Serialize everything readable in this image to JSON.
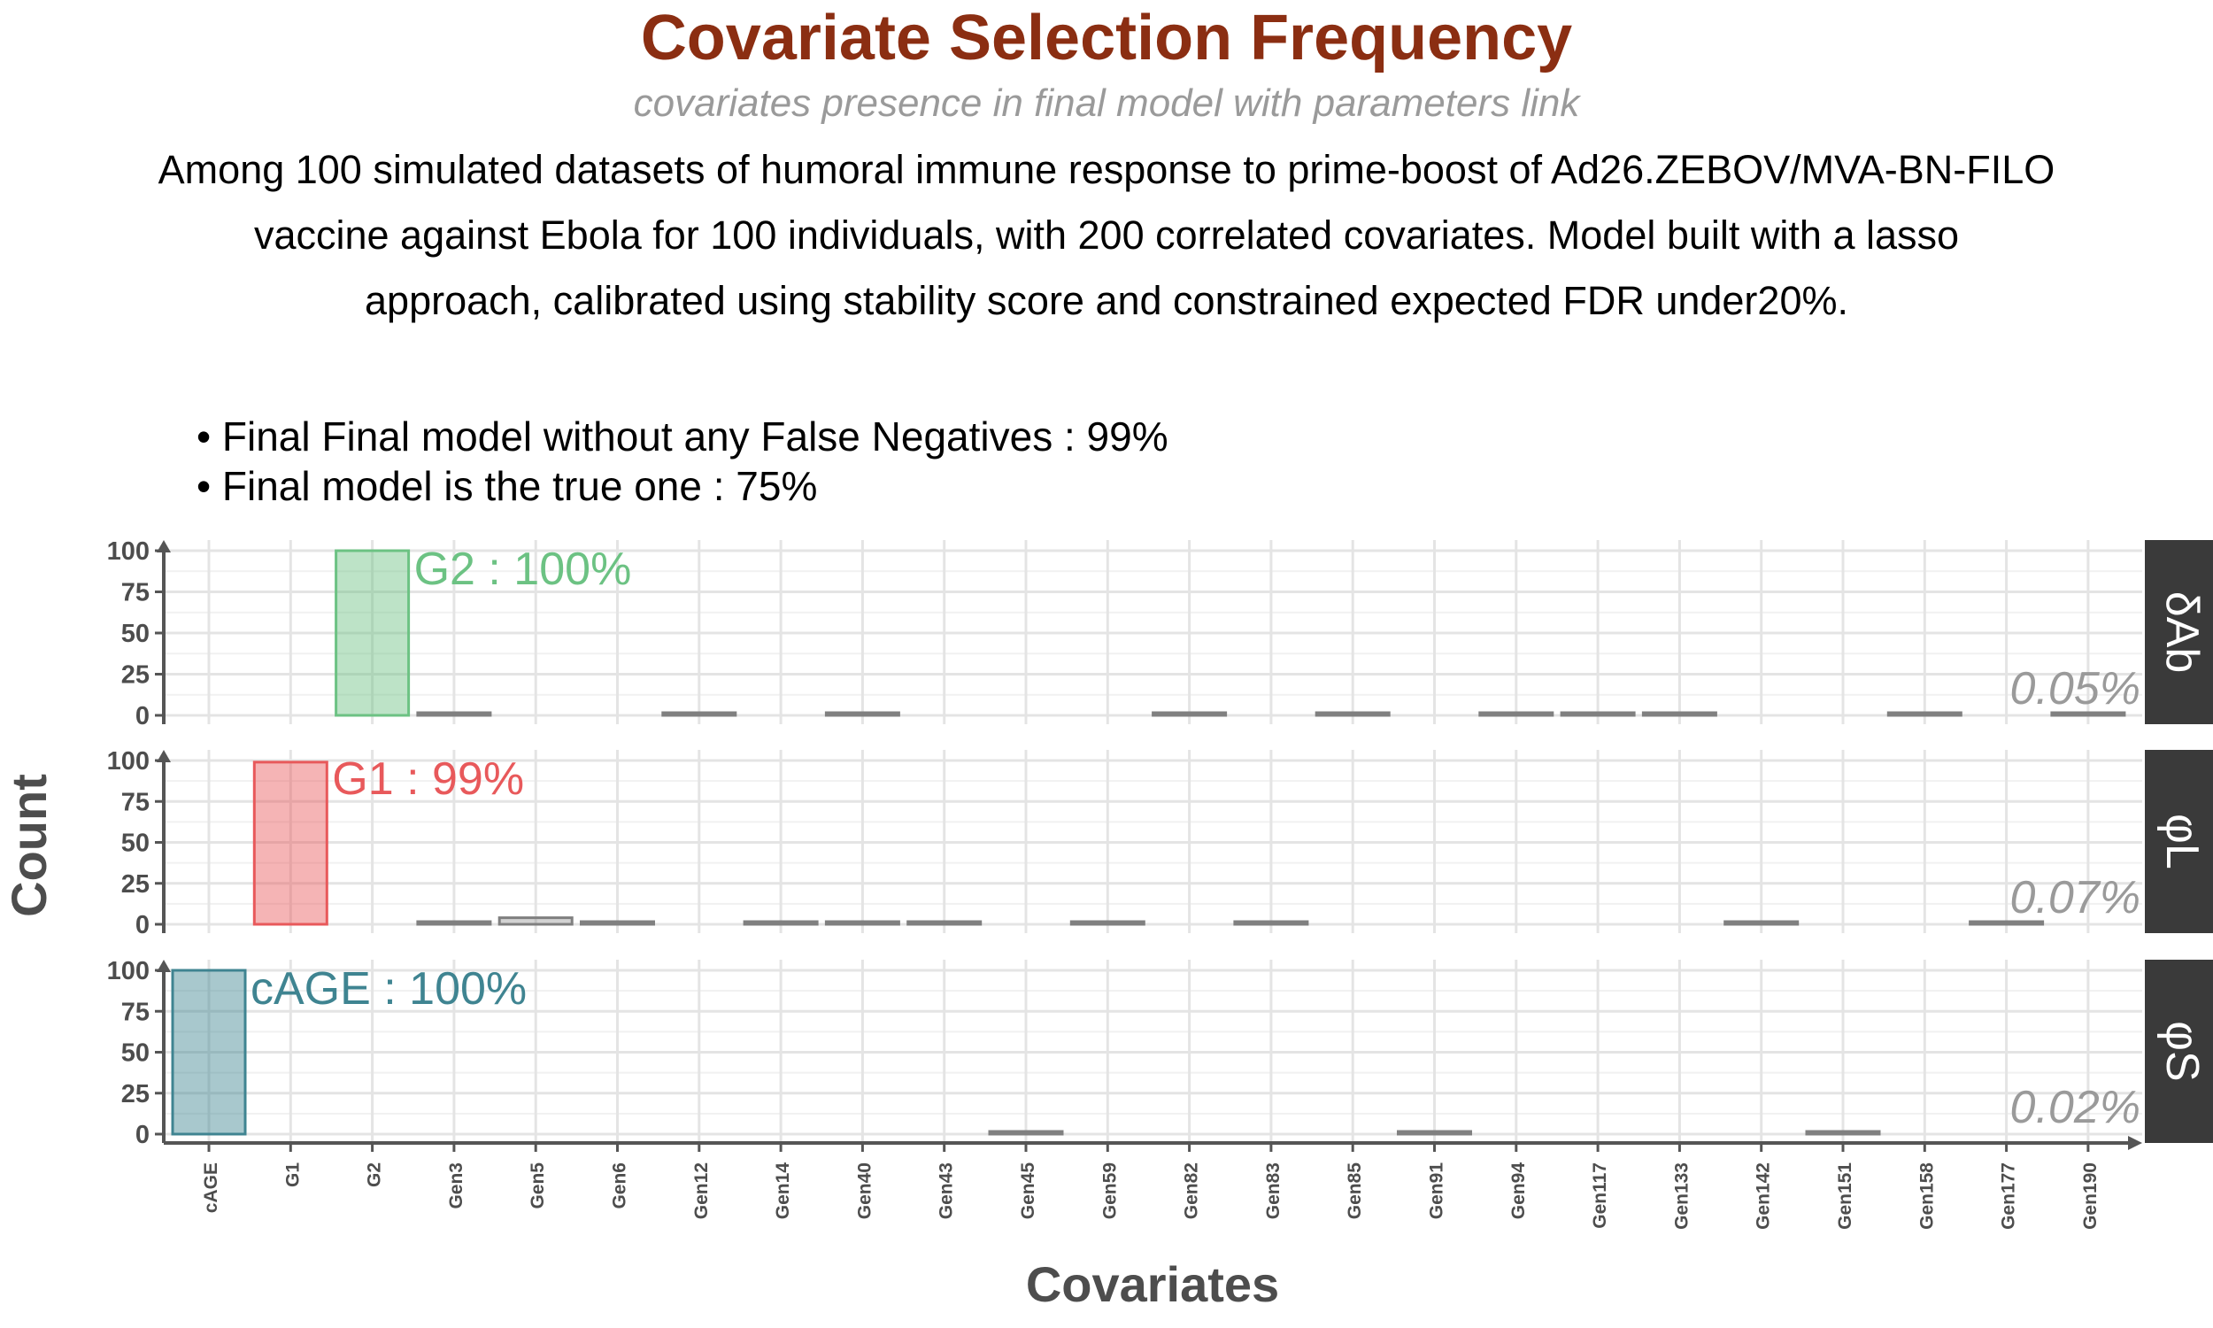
{
  "title": "Covariate Selection Frequency",
  "subtitle": "covariates presence in final model with parameters link",
  "caption": [
    "Among 100 simulated datasets of humoral immune response to prime-boost of Ad26.ZEBOV/MVA-BN-FILO",
    "vaccine against Ebola for 100 individuals, with 200 correlated covariates. Model built with a lasso",
    "approach, calibrated using stability score and constrained expected FDR under20%."
  ],
  "bullets": [
    "• Final Final model without any False Negatives : 99%",
    "• Final model is the true one  : 75%"
  ],
  "colors": {
    "title": "#8B2E12",
    "panel_strip": "#3a3a3a",
    "G2": "#6cc283",
    "G1": "#e8595b",
    "cAGE": "#3f8491",
    "other": "#808080",
    "fdr_text": "#9a9a9a"
  },
  "chart_data": {
    "type": "bar",
    "xlabel": "Covariates",
    "ylabel": "Count",
    "ylim": [
      0,
      100
    ],
    "yticks": [
      "0",
      "25",
      "50",
      "75",
      "100"
    ],
    "grid": true,
    "categories": [
      "cAGE",
      "G1",
      "G2",
      "Gen3",
      "Gen5",
      "Gen6",
      "Gen12",
      "Gen14",
      "Gen40",
      "Gen43",
      "Gen45",
      "Gen59",
      "Gen82",
      "Gen83",
      "Gen85",
      "Gen91",
      "Gen94",
      "Gen117",
      "Gen133",
      "Gen142",
      "Gen151",
      "Gen158",
      "Gen177",
      "Gen190"
    ],
    "panels": [
      {
        "strip": "δAb",
        "fdr": "0.05%",
        "highlight": "G2",
        "label": "G2 : 100%",
        "values": [
          0,
          0,
          100,
          1,
          0,
          0,
          1,
          0,
          1,
          0,
          0,
          0,
          1,
          0,
          1,
          0,
          1,
          1,
          1,
          0,
          0,
          1,
          0,
          1
        ]
      },
      {
        "strip": "φL",
        "fdr": "0.07%",
        "highlight": "G1",
        "label": "G1 : 99%",
        "values": [
          0,
          99,
          0,
          1,
          4,
          1,
          0,
          1,
          1,
          1,
          0,
          1,
          0,
          1,
          0,
          0,
          0,
          0,
          0,
          1,
          0,
          0,
          1,
          0
        ]
      },
      {
        "strip": "φS",
        "fdr": "0.02%",
        "highlight": "cAGE",
        "label": "cAGE : 100%",
        "values": [
          100,
          0,
          0,
          0,
          0,
          0,
          0,
          0,
          0,
          0,
          1,
          0,
          0,
          0,
          0,
          1,
          0,
          0,
          0,
          0,
          1,
          0,
          0,
          0
        ]
      }
    ]
  }
}
